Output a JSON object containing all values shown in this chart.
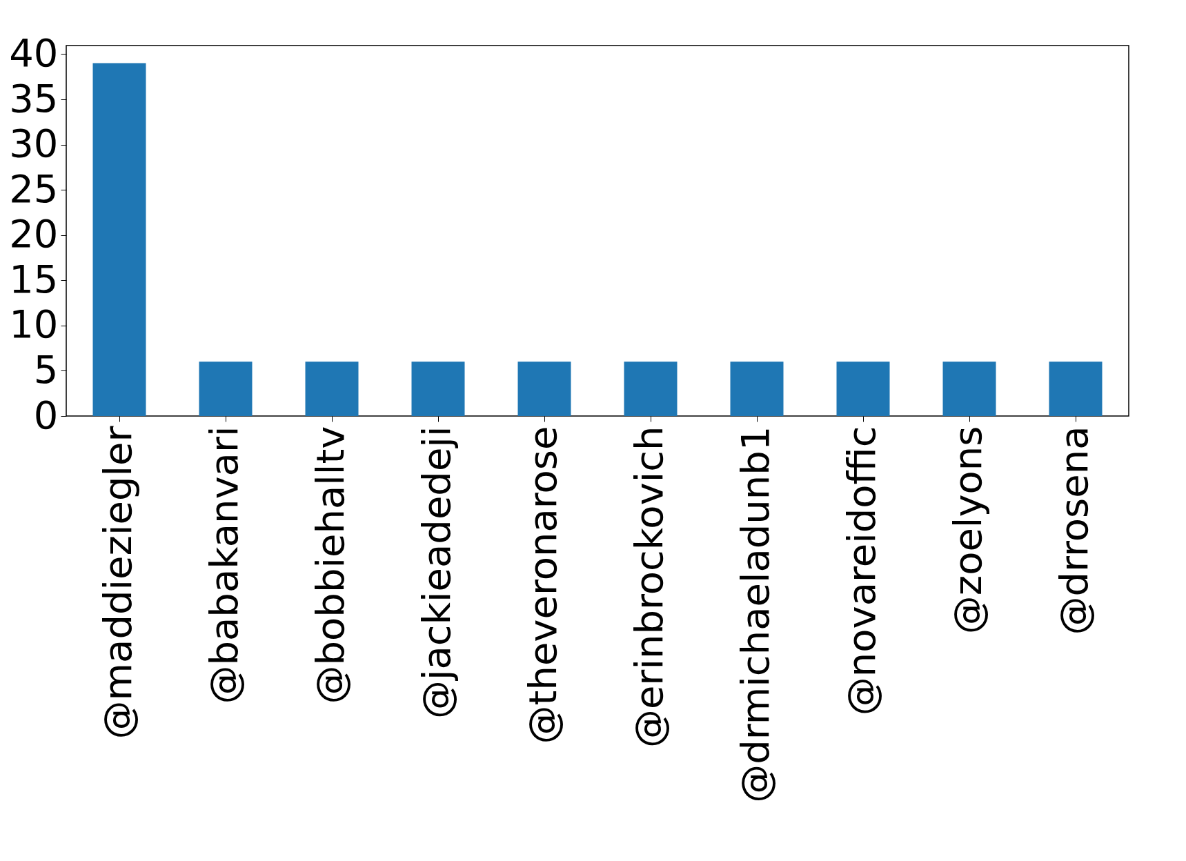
{
  "chart_data": {
    "type": "bar",
    "categories": [
      "@maddieziegler",
      "@babakanvari",
      "@bobbiehalltv",
      "@jackieadedeji",
      "@theveronarose",
      "@erinbrockovich",
      "@drmichaeladunb1",
      "@novareidoffic",
      "@zoelyons",
      "@drrosena"
    ],
    "values": [
      39,
      6,
      6,
      6,
      6,
      6,
      6,
      6,
      6,
      6
    ],
    "color": "#1f77b4",
    "ylim": [
      0,
      40.95
    ],
    "yticks": [
      0,
      5,
      10,
      15,
      20,
      25,
      30,
      35,
      40
    ],
    "grid": false
  }
}
